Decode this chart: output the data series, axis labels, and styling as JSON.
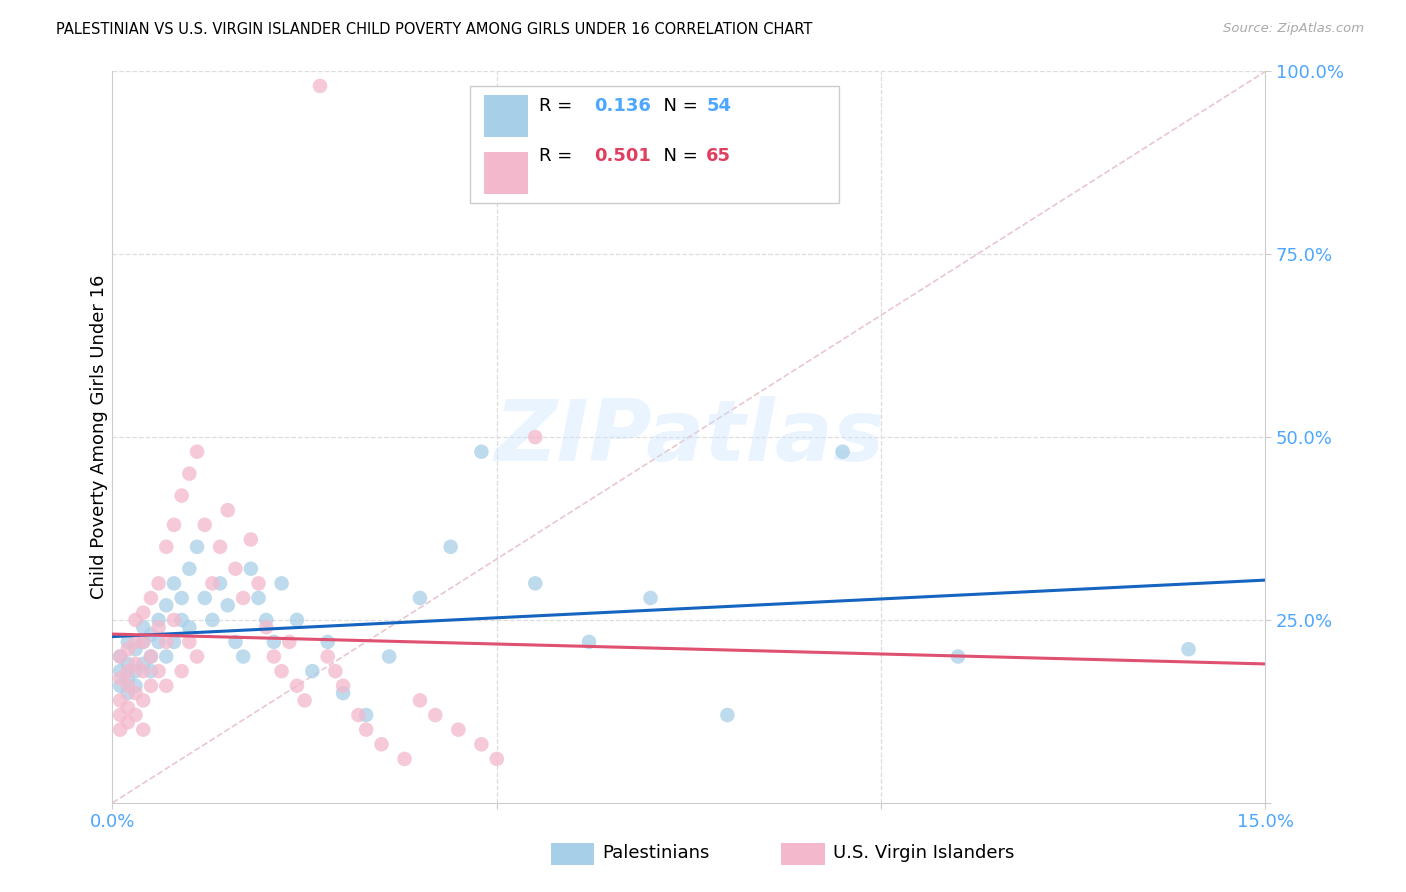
{
  "title": "PALESTINIAN VS U.S. VIRGIN ISLANDER CHILD POVERTY AMONG GIRLS UNDER 16 CORRELATION CHART",
  "source": "Source: ZipAtlas.com",
  "ylabel": "Child Poverty Among Girls Under 16",
  "xlim": [
    0.0,
    0.15
  ],
  "ylim": [
    0.0,
    1.0
  ],
  "color_blue": "#a8cfe8",
  "color_pink": "#f4b8cc",
  "color_trend_blue": "#1565c0",
  "color_trend_pink": "#e05070",
  "color_axis_labels": "#4da6ff",
  "color_diag": "#e8c0c8",
  "r1": "0.136",
  "n1": "54",
  "r2": "0.501",
  "n2": "65",
  "label1": "Palestinians",
  "label2": "U.S. Virgin Islanders",
  "watermark": "ZIPatlas",
  "pal_x": [
    0.001,
    0.001,
    0.001,
    0.002,
    0.002,
    0.002,
    0.002,
    0.003,
    0.003,
    0.003,
    0.004,
    0.004,
    0.004,
    0.005,
    0.005,
    0.005,
    0.006,
    0.006,
    0.007,
    0.007,
    0.008,
    0.008,
    0.009,
    0.009,
    0.01,
    0.01,
    0.011,
    0.012,
    0.013,
    0.014,
    0.015,
    0.016,
    0.017,
    0.018,
    0.019,
    0.02,
    0.021,
    0.022,
    0.024,
    0.026,
    0.028,
    0.03,
    0.033,
    0.036,
    0.04,
    0.044,
    0.048,
    0.055,
    0.062,
    0.07,
    0.08,
    0.095,
    0.11,
    0.14
  ],
  "pal_y": [
    0.2,
    0.18,
    0.16,
    0.22,
    0.19,
    0.17,
    0.15,
    0.21,
    0.18,
    0.16,
    0.24,
    0.22,
    0.19,
    0.23,
    0.2,
    0.18,
    0.25,
    0.22,
    0.27,
    0.2,
    0.3,
    0.22,
    0.28,
    0.25,
    0.32,
    0.24,
    0.35,
    0.28,
    0.25,
    0.3,
    0.27,
    0.22,
    0.2,
    0.32,
    0.28,
    0.25,
    0.22,
    0.3,
    0.25,
    0.18,
    0.22,
    0.15,
    0.12,
    0.2,
    0.28,
    0.35,
    0.48,
    0.3,
    0.22,
    0.28,
    0.12,
    0.48,
    0.2,
    0.21
  ],
  "vi_x": [
    0.001,
    0.001,
    0.001,
    0.001,
    0.001,
    0.002,
    0.002,
    0.002,
    0.002,
    0.002,
    0.003,
    0.003,
    0.003,
    0.003,
    0.003,
    0.004,
    0.004,
    0.004,
    0.004,
    0.004,
    0.005,
    0.005,
    0.005,
    0.006,
    0.006,
    0.006,
    0.007,
    0.007,
    0.007,
    0.008,
    0.008,
    0.009,
    0.009,
    0.01,
    0.01,
    0.011,
    0.011,
    0.012,
    0.013,
    0.014,
    0.015,
    0.016,
    0.017,
    0.018,
    0.019,
    0.02,
    0.021,
    0.022,
    0.023,
    0.024,
    0.025,
    0.027,
    0.028,
    0.029,
    0.03,
    0.032,
    0.033,
    0.035,
    0.038,
    0.04,
    0.042,
    0.045,
    0.048,
    0.05,
    0.055
  ],
  "vi_y": [
    0.14,
    0.17,
    0.2,
    0.12,
    0.1,
    0.16,
    0.18,
    0.21,
    0.13,
    0.11,
    0.19,
    0.22,
    0.15,
    0.25,
    0.12,
    0.22,
    0.26,
    0.18,
    0.14,
    0.1,
    0.28,
    0.2,
    0.16,
    0.3,
    0.24,
    0.18,
    0.35,
    0.22,
    0.16,
    0.38,
    0.25,
    0.42,
    0.18,
    0.45,
    0.22,
    0.48,
    0.2,
    0.38,
    0.3,
    0.35,
    0.4,
    0.32,
    0.28,
    0.36,
    0.3,
    0.24,
    0.2,
    0.18,
    0.22,
    0.16,
    0.14,
    0.98,
    0.2,
    0.18,
    0.16,
    0.12,
    0.1,
    0.08,
    0.06,
    0.14,
    0.12,
    0.1,
    0.08,
    0.06,
    0.5
  ]
}
